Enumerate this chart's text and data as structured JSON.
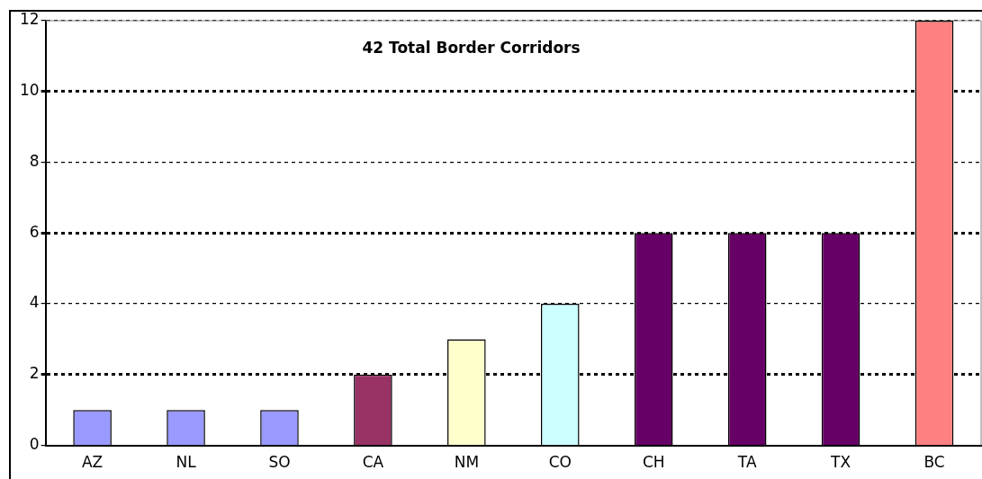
{
  "chart_data": {
    "type": "bar",
    "title": "42 Total Border Corridors",
    "categories": [
      "AZ",
      "NL",
      "SO",
      "CA",
      "NM",
      "CO",
      "CH",
      "TA",
      "TX",
      "BC"
    ],
    "values": [
      1,
      1,
      1,
      2,
      3,
      4,
      6,
      6,
      6,
      12
    ],
    "colors": [
      "#9999ff",
      "#9999ff",
      "#9999ff",
      "#993366",
      "#ffffcc",
      "#ccffff",
      "#660066",
      "#660066",
      "#660066",
      "#ff8080"
    ],
    "ylim": [
      0,
      12
    ],
    "yticks": [
      0,
      2,
      4,
      6,
      8,
      10,
      12
    ],
    "grid": "y",
    "legend": false
  }
}
